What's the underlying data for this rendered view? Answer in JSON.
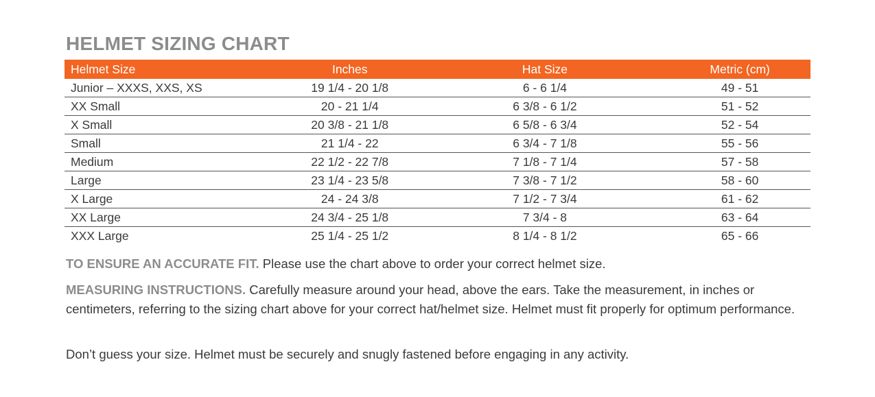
{
  "title": "HELMET SIZING CHART",
  "colors": {
    "accent": "#f26522",
    "heading_gray": "#8c8c8c"
  },
  "table": {
    "headers": [
      "Helmet Size",
      "Inches",
      "Hat Size",
      "Metric (cm)"
    ],
    "rows": [
      [
        "Junior –  XXXS, XXS, XS",
        "19 1/4 - 20 1/8",
        "6 - 6 1/4",
        "49 - 51"
      ],
      [
        "XX Small",
        "20 - 21 1/4",
        "6 3/8 - 6 1/2",
        "51 - 52"
      ],
      [
        "X Small",
        "20 3/8 - 21 1/8",
        "6 5/8 - 6 3/4",
        "52 - 54"
      ],
      [
        "Small",
        "21 1/4 - 22",
        "6 3/4 - 7 1/8",
        "55 - 56"
      ],
      [
        "Medium",
        "22 1/2 - 22 7/8",
        "7 1/8 - 7 1/4",
        "57 - 58"
      ],
      [
        "Large",
        "23 1/4 - 23 5/8",
        "7 3/8 - 7 1/2",
        "58 - 60"
      ],
      [
        "X Large",
        "24 - 24 3/8",
        "7 1/2 - 7 3/4",
        "61 - 62"
      ],
      [
        "XX Large",
        "24 3/4 - 25 1/8",
        "7 3/4 - 8",
        "63 - 64"
      ],
      [
        "XXX Large",
        "25 1/4 - 25 1/2",
        "8 1/4 - 8 1/2",
        "65 - 66"
      ]
    ]
  },
  "fit": {
    "label": "TO ENSURE AN ACCURATE FIT.",
    "text": " Please use the chart above to order your correct helmet size."
  },
  "measuring": {
    "label": "MEASURING INSTRUCTIONS.",
    "text": " Carefully measure around your head, above the ears. Take the measurement, in inches or centimeters, referring to the sizing chart above for your correct hat/helmet size. Helmet must fit properly for optimum performance."
  },
  "warning": "Don’t guess your size. Helmet must be securely and snugly fastened before engaging in any activity."
}
